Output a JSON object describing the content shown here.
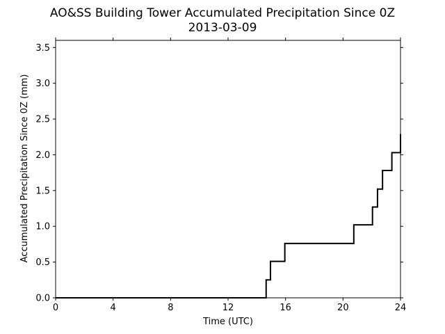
{
  "chart_data": {
    "type": "line",
    "title_line1": "AO&SS Building Tower Accumulated Precipitation Since 0Z",
    "title_line2": "2013-03-09",
    "xlabel": "Time (UTC)",
    "ylabel": "Accumulated Precipitation Since 0Z (mm)",
    "xlim": [
      0,
      24
    ],
    "ylim": [
      0,
      3.6
    ],
    "xticks": [
      0,
      4,
      8,
      12,
      16,
      20,
      24
    ],
    "yticks": [
      0.0,
      0.5,
      1.0,
      1.5,
      2.0,
      2.5,
      3.0,
      3.5
    ],
    "ytick_labels": [
      "0.0",
      "0.5",
      "1.0",
      "1.5",
      "2.0",
      "2.5",
      "3.0",
      "3.5"
    ],
    "grid": false,
    "series": [
      {
        "color": "#000000",
        "drawstyle": "steps-post",
        "x": [
          0,
          14.65,
          14.95,
          15.95,
          20.75,
          22.05,
          22.4,
          22.75,
          23.4,
          24.0
        ],
        "y": [
          0,
          0.25,
          0.51,
          0.76,
          1.02,
          1.27,
          1.52,
          1.78,
          2.03,
          2.29
        ]
      }
    ]
  }
}
